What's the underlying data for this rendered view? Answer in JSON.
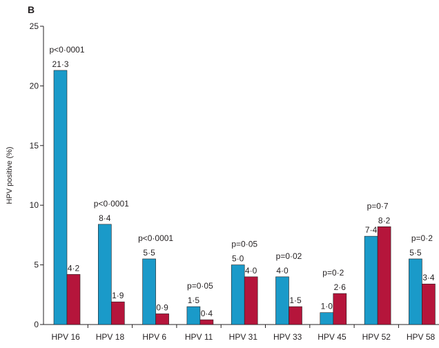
{
  "panel_label": "B",
  "chart_data": {
    "type": "bar",
    "title": "",
    "xlabel": "",
    "ylabel": "HPV positive (%)",
    "ylim": [
      0,
      25
    ],
    "yticks": [
      0,
      5,
      10,
      15,
      20,
      25
    ],
    "ytick_labels": [
      "0",
      "5",
      "10",
      "15",
      "20",
      "25"
    ],
    "grid": false,
    "legend": "none",
    "categories": [
      "HPV 16",
      "HPV 18",
      "HPV 6",
      "HPV 11",
      "HPV 31",
      "HPV 33",
      "HPV 45",
      "HPV 52",
      "HPV 58"
    ],
    "series": [
      {
        "color": "#1a9ac9",
        "values": [
          21.3,
          8.4,
          5.5,
          1.5,
          5.0,
          4.0,
          1.0,
          7.4,
          5.5
        ],
        "labels": [
          "21·3",
          "8·4",
          "5·5",
          "1·5",
          "5·0",
          "4·0",
          "1·0",
          "7·4",
          "5·5"
        ]
      },
      {
        "color": "#b5153b",
        "values": [
          4.2,
          1.9,
          0.9,
          0.4,
          4.0,
          1.5,
          2.6,
          8.2,
          3.4
        ],
        "labels": [
          "4·2",
          "1·9",
          "0·9",
          "0·4",
          "4·0",
          "1·5",
          "2·6",
          "8·2",
          "3·4"
        ]
      }
    ],
    "p_values": [
      "p<0·0001",
      "p<0·0001",
      "p<0·0001",
      "p=0·05",
      "p=0·05",
      "p=0·02",
      "p=0·2",
      "p=0·7",
      "p=0·2"
    ]
  }
}
